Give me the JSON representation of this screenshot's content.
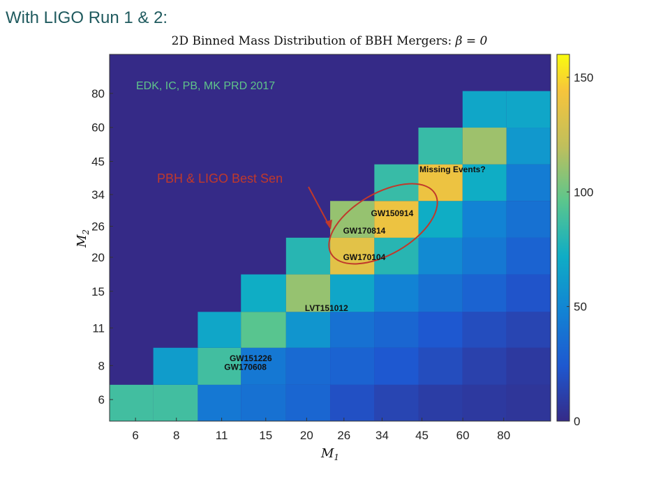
{
  "slide": {
    "heading": "With LIGO Run 1 & 2:"
  },
  "chart_data": {
    "type": "heatmap",
    "title": "2D Binned Mass Distribution of BBH Mergers: β = 0",
    "title_prefix": "2D Binned Mass Distribution of BBH Mergers: ",
    "title_math": "β = 0",
    "xlabel": "M1",
    "xlabel_main": "M",
    "xlabel_sub": "1",
    "ylabel": "M2",
    "ylabel_main": "M",
    "ylabel_sub": "2",
    "x_bin_edges": [
      5,
      6.8,
      9.3,
      12.6,
      17.3,
      23.6,
      32.2,
      43.9,
      59.9,
      81.6,
      111.3
    ],
    "y_bin_edges": [
      5,
      6.8,
      9.3,
      12.6,
      17.3,
      23.6,
      32.2,
      43.9,
      59.9,
      81.6,
      111.3
    ],
    "x_ticks": [
      6,
      8,
      11,
      15,
      20,
      26,
      34,
      45,
      60,
      80
    ],
    "y_ticks": [
      6,
      8,
      11,
      15,
      20,
      26,
      34,
      45,
      60,
      80
    ],
    "x_scale": "log",
    "y_scale": "log",
    "background_value": 0,
    "colormap": "parula",
    "colorbar": {
      "range": [
        0,
        160
      ],
      "ticks": [
        0,
        50,
        100,
        150
      ]
    },
    "cells": [
      [
        88,
        88,
        42,
        38,
        32,
        20,
        14,
        10,
        8,
        6
      ],
      [
        null,
        62,
        88,
        42,
        34,
        30,
        24,
        18,
        12,
        8
      ],
      [
        null,
        null,
        68,
        95,
        58,
        38,
        32,
        24,
        18,
        14
      ],
      [
        null,
        null,
        null,
        72,
        110,
        68,
        48,
        38,
        30,
        22
      ],
      [
        null,
        null,
        null,
        null,
        80,
        135,
        80,
        52,
        42,
        30
      ],
      [
        null,
        null,
        null,
        null,
        null,
        110,
        140,
        72,
        48,
        38
      ],
      [
        null,
        null,
        null,
        null,
        null,
        null,
        85,
        140,
        72,
        44
      ],
      [
        null,
        null,
        null,
        null,
        null,
        null,
        null,
        85,
        112,
        60
      ],
      [
        null,
        null,
        null,
        null,
        null,
        null,
        null,
        null,
        68,
        68
      ],
      [
        null,
        null,
        null,
        null,
        null,
        null,
        null,
        null,
        null,
        null
      ]
    ],
    "events": [
      {
        "name": "GW151226",
        "m1": 13.5,
        "m2": 8.5
      },
      {
        "name": "GW170608",
        "m1": 13.0,
        "m2": 7.9
      },
      {
        "name": "LVT151012",
        "m1": 23.0,
        "m2": 13.0
      },
      {
        "name": "GW170104",
        "m1": 30.0,
        "m2": 20.0
      },
      {
        "name": "GW170814",
        "m1": 30.0,
        "m2": 25.0
      },
      {
        "name": "GW150914",
        "m1": 36.5,
        "m2": 29.0
      }
    ],
    "annotations": {
      "reference": "EDK, IC, PB, MK PRD 2017",
      "highlight": "PBH & LIGO Best Sen",
      "missing": "Missing Events?"
    },
    "colors": {
      "reference": "#5fc48a",
      "highlight": "#c0392b",
      "event_label": "#111111"
    }
  }
}
